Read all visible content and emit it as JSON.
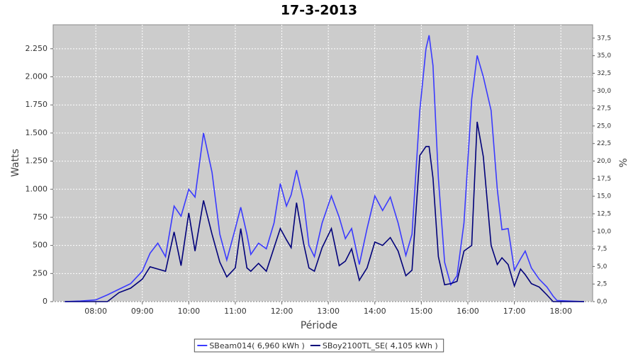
{
  "chart_data": {
    "type": "line",
    "title": "17-3-2013",
    "x_label": "Période",
    "y_label": "Watts",
    "y2_label": "%",
    "x": [
      "07:20",
      "07:40",
      "08:00",
      "08:15",
      "08:30",
      "08:45",
      "09:00",
      "09:10",
      "09:20",
      "09:30",
      "09:41",
      "09:50",
      "10:00",
      "10:08",
      "10:19",
      "10:30",
      "10:40",
      "10:49",
      "11:00",
      "11:07",
      "11:15",
      "11:20",
      "11:30",
      "11:40",
      "11:50",
      "11:58",
      "12:06",
      "12:12",
      "12:19",
      "12:28",
      "12:35",
      "12:42",
      "12:52",
      "13:04",
      "13:14",
      "13:22",
      "13:30",
      "13:40",
      "13:50",
      "14:00",
      "14:10",
      "14:20",
      "14:30",
      "14:40",
      "14:48",
      "14:58",
      "15:06",
      "15:10",
      "15:15",
      "15:22",
      "15:30",
      "15:38",
      "15:46",
      "15:55",
      "16:05",
      "16:12",
      "16:20",
      "16:30",
      "16:38",
      "16:44",
      "16:52",
      "17:00",
      "17:08",
      "17:14",
      "17:22",
      "17:32",
      "17:42",
      "17:50",
      "17:55",
      "18:10",
      "18:30"
    ],
    "series": [
      {
        "name": "SBeam014( 6,960 kWh )",
        "color": "#3a3aff",
        "values": [
          0,
          5,
          15,
          60,
          110,
          160,
          270,
          430,
          520,
          400,
          850,
          760,
          1000,
          930,
          1500,
          1150,
          600,
          370,
          650,
          840,
          600,
          420,
          520,
          470,
          700,
          1050,
          850,
          950,
          1170,
          900,
          500,
          400,
          700,
          940,
          750,
          560,
          650,
          330,
          650,
          940,
          810,
          930,
          700,
          410,
          600,
          1700,
          2250,
          2370,
          2100,
          1100,
          350,
          150,
          230,
          700,
          1800,
          2190,
          2000,
          1700,
          1000,
          640,
          650,
          280,
          380,
          450,
          300,
          200,
          130,
          50,
          10,
          5,
          0
        ]
      },
      {
        "name": "SBoy2100TL_SE( 4,105 kWh )",
        "color": "#00007a",
        "values": [
          0,
          0,
          0,
          0,
          80,
          120,
          200,
          310,
          290,
          270,
          620,
          320,
          790,
          450,
          900,
          600,
          350,
          220,
          300,
          650,
          300,
          270,
          340,
          270,
          480,
          650,
          550,
          480,
          880,
          520,
          300,
          270,
          480,
          650,
          320,
          360,
          470,
          190,
          300,
          530,
          500,
          570,
          450,
          230,
          280,
          1300,
          1380,
          1380,
          1100,
          400,
          150,
          160,
          180,
          450,
          500,
          1600,
          1290,
          500,
          330,
          390,
          330,
          140,
          290,
          240,
          160,
          130,
          60,
          0,
          0,
          0,
          0
        ]
      }
    ],
    "xlim": [
      "07:05",
      "18:41"
    ],
    "xticks": [
      "08:00",
      "09:00",
      "10:00",
      "11:00",
      "12:00",
      "13:00",
      "14:00",
      "15:00",
      "16:00",
      "17:00",
      "18:00"
    ],
    "ylim": [
      0,
      2463
    ],
    "yticks": [
      0,
      250,
      500,
      750,
      {
        "value": 1000,
        "label": "1.000"
      },
      {
        "value": 1250,
        "label": "1.250"
      },
      {
        "value": 1500,
        "label": "1.500"
      },
      {
        "value": 1750,
        "label": "1.750"
      },
      {
        "value": 2000,
        "label": "2.000"
      },
      {
        "value": 2250,
        "label": "2.250"
      }
    ],
    "y2lim": [
      0,
      39.4
    ],
    "y2ticks": [
      {
        "value": 0,
        "label": "0,0"
      },
      {
        "value": 2.5,
        "label": "2,5"
      },
      {
        "value": 5,
        "label": "5,0"
      },
      {
        "value": 7.5,
        "label": "7,5"
      },
      {
        "value": 10,
        "label": "10,0"
      },
      {
        "value": 12.5,
        "label": "12,5"
      },
      {
        "value": 15,
        "label": "15,0"
      },
      {
        "value": 17.5,
        "label": "17,5"
      },
      {
        "value": 20,
        "label": "20,0"
      },
      {
        "value": 22.5,
        "label": "22,5"
      },
      {
        "value": 25,
        "label": "25,0"
      },
      {
        "value": 27.5,
        "label": "27,5"
      },
      {
        "value": 30,
        "label": "30,0"
      },
      {
        "value": 32.5,
        "label": "32,5"
      },
      {
        "value": 35,
        "label": "35,0"
      },
      {
        "value": 37.5,
        "label": "37,5"
      }
    ],
    "grid": true,
    "plot_background": "#cccccc",
    "legend": "bottom"
  }
}
